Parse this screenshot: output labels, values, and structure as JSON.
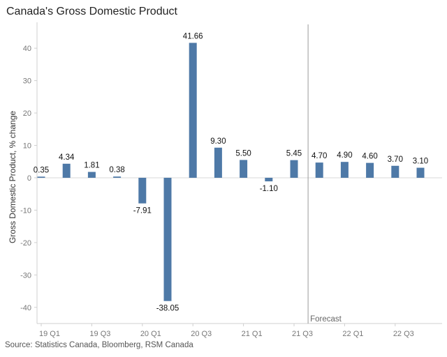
{
  "chart_data": {
    "type": "bar",
    "title": "Canada's Gross Domestic Product",
    "ylabel": "Gross Domestic Product, % change",
    "xlabel": "",
    "source": "Source: Statistics Canada, Bloomberg, RSM Canada",
    "ylim": [
      -45,
      48
    ],
    "yticks": [
      -40,
      -30,
      -20,
      -10,
      0,
      10,
      20,
      30,
      40
    ],
    "grid": false,
    "categories": [
      "19 Q1",
      "19 Q2",
      "19 Q3",
      "19 Q4",
      "20 Q1",
      "20 Q2",
      "20 Q3",
      "20 Q4",
      "21 Q1",
      "21 Q2",
      "21 Q3",
      "21 Q4",
      "22 Q1",
      "22 Q2",
      "22 Q3",
      "22 Q4"
    ],
    "visible_xtick_labels": [
      "19 Q1",
      "19 Q3",
      "20 Q1",
      "20 Q3",
      "21 Q1",
      "21 Q3",
      "22 Q1",
      "22 Q3"
    ],
    "values": [
      0.35,
      4.34,
      1.81,
      0.38,
      -7.91,
      -38.05,
      41.66,
      9.3,
      5.5,
      -1.1,
      5.45,
      4.7,
      4.9,
      4.6,
      3.7,
      3.1
    ],
    "data_labels": [
      "0.35",
      "4.34",
      "1.81",
      "0.38",
      "-7.91",
      "-38.05",
      "41.66",
      "9.30",
      "5.50",
      "-1.10",
      "5.45",
      "4.70",
      "4.90",
      "4.60",
      "3.70",
      "3.10"
    ],
    "bar_color": "#4e79a7",
    "annotation": {
      "label": "Forecast",
      "between_categories": [
        "21 Q3",
        "21 Q4"
      ]
    }
  }
}
